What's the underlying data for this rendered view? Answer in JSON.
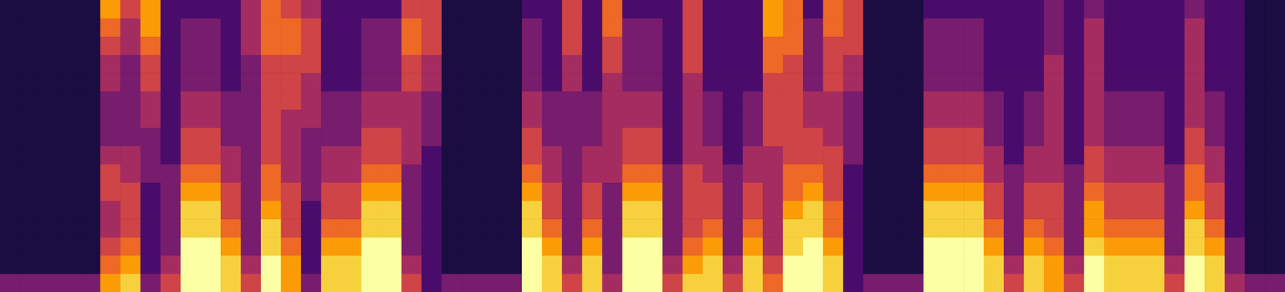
{
  "chart_data": {
    "type": "heatmap",
    "tick_labels": false,
    "color": "inferno",
    "zlim": [
      0,
      9
    ],
    "cells": [
      [
        3,
        1,
        1,
        1,
        1,
        1,
        1,
        1,
        1,
        1,
        1,
        1,
        1,
        1,
        1,
        1
      ],
      [
        3,
        1,
        1,
        1,
        1,
        1,
        1,
        1,
        1,
        1,
        1,
        1,
        1,
        1,
        1,
        1
      ],
      [
        3,
        1,
        1,
        1,
        1,
        1,
        1,
        1,
        1,
        1,
        1,
        1,
        1,
        1,
        1,
        1
      ],
      [
        3,
        1,
        1,
        1,
        1,
        1,
        1,
        1,
        1,
        1,
        1,
        1,
        1,
        1,
        1,
        1
      ],
      [
        3,
        1,
        1,
        1,
        1,
        1,
        1,
        1,
        1,
        1,
        1,
        1,
        1,
        1,
        1,
        1
      ],
      [
        7,
        6,
        5,
        4,
        4,
        5,
        5,
        4,
        3,
        3,
        3,
        4,
        4,
        5,
        6,
        7
      ],
      [
        8,
        7,
        6,
        5,
        5,
        5,
        4,
        4,
        3,
        3,
        3,
        3,
        3,
        4,
        4,
        5
      ],
      [
        3,
        2,
        2,
        2,
        2,
        2,
        3,
        3,
        3,
        4,
        4,
        5,
        5,
        6,
        7,
        7
      ],
      [
        5,
        4,
        3,
        3,
        3,
        3,
        3,
        2,
        2,
        2,
        2,
        2,
        2,
        2,
        2,
        2
      ],
      [
        9,
        9,
        9,
        8,
        8,
        7,
        6,
        5,
        5,
        4,
        4,
        3,
        3,
        3,
        3,
        2
      ],
      [
        9,
        9,
        9,
        8,
        8,
        7,
        6,
        5,
        5,
        4,
        4,
        3,
        3,
        3,
        3,
        2
      ],
      [
        8,
        8,
        7,
        6,
        5,
        5,
        4,
        4,
        3,
        3,
        3,
        2,
        2,
        2,
        2,
        2
      ],
      [
        5,
        4,
        3,
        3,
        3,
        3,
        3,
        3,
        3,
        3,
        3,
        3,
        3,
        4,
        4,
        4
      ],
      [
        9,
        9,
        8,
        8,
        7,
        6,
        6,
        5,
        5,
        5,
        5,
        5,
        5,
        6,
        6,
        6
      ],
      [
        7,
        7,
        6,
        5,
        5,
        5,
        4,
        4,
        4,
        4,
        5,
        5,
        5,
        6,
        6,
        5
      ],
      [
        3,
        2,
        2,
        2,
        2,
        3,
        3,
        3,
        3,
        4,
        4,
        4,
        5,
        5,
        5,
        4
      ],
      [
        8,
        8,
        7,
        6,
        5,
        5,
        4,
        4,
        3,
        3,
        3,
        2,
        2,
        2,
        2,
        2
      ],
      [
        8,
        8,
        7,
        6,
        5,
        5,
        4,
        4,
        3,
        3,
        3,
        2,
        2,
        2,
        2,
        2
      ],
      [
        9,
        9,
        9,
        8,
        8,
        7,
        6,
        5,
        5,
        4,
        4,
        3,
        3,
        3,
        3,
        2
      ],
      [
        9,
        9,
        9,
        8,
        8,
        7,
        6,
        5,
        5,
        4,
        4,
        3,
        3,
        3,
        3,
        2
      ],
      [
        5,
        4,
        3,
        3,
        3,
        3,
        3,
        4,
        4,
        4,
        4,
        5,
        5,
        6,
        6,
        5
      ],
      [
        2,
        2,
        2,
        2,
        2,
        2,
        2,
        2,
        3,
        3,
        3,
        4,
        4,
        5,
        5,
        5
      ],
      [
        3,
        1,
        1,
        1,
        1,
        1,
        1,
        1,
        1,
        1,
        1,
        1,
        1,
        1,
        1,
        1
      ],
      [
        3,
        1,
        1,
        1,
        1,
        1,
        1,
        1,
        1,
        1,
        1,
        1,
        1,
        1,
        1,
        1
      ],
      [
        3,
        1,
        1,
        1,
        1,
        1,
        1,
        1,
        1,
        1,
        1,
        1,
        1,
        1,
        1,
        1
      ],
      [
        3,
        1,
        1,
        1,
        1,
        1,
        1,
        1,
        1,
        1,
        1,
        1,
        1,
        1,
        1,
        1
      ],
      [
        9,
        9,
        9,
        8,
        8,
        7,
        6,
        5,
        5,
        4,
        4,
        3,
        3,
        3,
        3,
        2
      ],
      [
        8,
        8,
        7,
        6,
        5,
        5,
        4,
        4,
        3,
        3,
        3,
        2,
        2,
        2,
        2,
        2
      ],
      [
        5,
        4,
        3,
        3,
        3,
        3,
        3,
        3,
        3,
        3,
        3,
        4,
        4,
        5,
        5,
        5
      ],
      [
        8,
        8,
        7,
        6,
        5,
        5,
        4,
        4,
        3,
        3,
        3,
        2,
        2,
        2,
        2,
        2
      ],
      [
        4,
        3,
        3,
        3,
        3,
        3,
        4,
        4,
        4,
        4,
        4,
        4,
        5,
        5,
        6,
        6
      ],
      [
        9,
        9,
        9,
        8,
        8,
        7,
        6,
        5,
        5,
        4,
        4,
        3,
        3,
        3,
        3,
        2
      ],
      [
        9,
        9,
        9,
        8,
        8,
        7,
        6,
        5,
        5,
        4,
        4,
        3,
        3,
        3,
        3,
        2
      ],
      [
        5,
        4,
        3,
        3,
        3,
        3,
        3,
        2,
        2,
        2,
        2,
        2,
        2,
        2,
        2,
        2
      ],
      [
        8,
        7,
        6,
        5,
        5,
        5,
        5,
        4,
        4,
        4,
        4,
        4,
        5,
        5,
        5,
        5
      ],
      [
        8,
        8,
        7,
        6,
        5,
        5,
        4,
        4,
        3,
        3,
        3,
        2,
        2,
        2,
        2,
        2
      ],
      [
        5,
        4,
        3,
        3,
        3,
        3,
        3,
        2,
        2,
        2,
        2,
        2,
        2,
        2,
        2,
        2
      ],
      [
        8,
        8,
        7,
        6,
        5,
        5,
        4,
        4,
        3,
        3,
        3,
        2,
        2,
        2,
        2,
        2
      ],
      [
        6,
        5,
        4,
        4,
        4,
        4,
        4,
        4,
        5,
        5,
        5,
        5,
        6,
        6,
        7,
        7
      ],
      [
        9,
        9,
        8,
        8,
        7,
        6,
        6,
        5,
        5,
        5,
        5,
        5,
        5,
        6,
        6,
        6
      ],
      [
        9,
        9,
        9,
        8,
        8,
        7,
        6,
        5,
        5,
        4,
        4,
        3,
        3,
        3,
        3,
        2
      ],
      [
        8,
        8,
        7,
        6,
        6,
        5,
        5,
        5,
        4,
        4,
        4,
        5,
        5,
        5,
        6,
        6
      ],
      [
        2,
        2,
        2,
        2,
        2,
        2,
        2,
        3,
        3,
        3,
        3,
        4,
        4,
        5,
        5,
        5
      ],
      [
        3,
        1,
        1,
        1,
        1,
        1,
        1,
        1,
        1,
        1,
        1,
        1,
        1,
        1,
        1,
        1
      ],
      [
        3,
        1,
        1,
        1,
        1,
        1,
        1,
        1,
        1,
        1,
        1,
        1,
        1,
        1,
        1,
        1
      ],
      [
        3,
        1,
        1,
        1,
        1,
        1,
        1,
        1,
        1,
        1,
        1,
        1,
        1,
        1,
        1,
        1
      ],
      [
        9,
        9,
        9,
        8,
        8,
        7,
        6,
        5,
        5,
        4,
        4,
        3,
        3,
        3,
        3,
        2
      ],
      [
        9,
        9,
        9,
        8,
        8,
        7,
        6,
        5,
        5,
        4,
        4,
        3,
        3,
        3,
        3,
        2
      ],
      [
        9,
        9,
        9,
        8,
        8,
        7,
        6,
        5,
        5,
        4,
        4,
        3,
        3,
        3,
        3,
        2
      ],
      [
        8,
        8,
        7,
        6,
        5,
        5,
        4,
        4,
        3,
        3,
        3,
        2,
        2,
        2,
        2,
        2
      ],
      [
        5,
        4,
        3,
        3,
        3,
        3,
        3,
        2,
        2,
        2,
        2,
        2,
        2,
        2,
        2,
        2
      ],
      [
        8,
        8,
        7,
        6,
        5,
        5,
        4,
        4,
        3,
        3,
        3,
        2,
        2,
        2,
        2,
        2
      ],
      [
        7,
        7,
        6,
        5,
        5,
        5,
        4,
        4,
        4,
        4,
        4,
        4,
        4,
        3,
        3,
        3
      ],
      [
        5,
        4,
        3,
        3,
        3,
        3,
        3,
        2,
        2,
        2,
        2,
        2,
        2,
        2,
        2,
        2
      ],
      [
        9,
        9,
        8,
        7,
        7,
        6,
        5,
        5,
        4,
        4,
        4,
        4,
        4,
        4,
        4,
        3
      ],
      [
        8,
        8,
        7,
        6,
        5,
        5,
        4,
        4,
        3,
        3,
        3,
        2,
        2,
        2,
        2,
        2
      ],
      [
        8,
        8,
        7,
        6,
        5,
        5,
        4,
        4,
        3,
        3,
        3,
        2,
        2,
        2,
        2,
        2
      ],
      [
        8,
        8,
        7,
        6,
        5,
        5,
        4,
        4,
        3,
        3,
        3,
        2,
        2,
        2,
        2,
        2
      ],
      [
        5,
        4,
        3,
        3,
        3,
        3,
        3,
        2,
        2,
        2,
        2,
        2,
        2,
        2,
        2,
        2
      ],
      [
        9,
        9,
        8,
        8,
        7,
        6,
        6,
        5,
        5,
        4,
        4,
        4,
        4,
        4,
        4,
        3
      ],
      [
        8,
        8,
        7,
        6,
        5,
        5,
        4,
        4,
        3,
        3,
        3,
        2,
        2,
        2,
        2,
        2
      ],
      [
        4,
        3,
        3,
        2,
        2,
        2,
        2,
        2,
        2,
        2,
        2,
        2,
        2,
        2,
        2,
        2
      ],
      [
        3,
        1,
        1,
        1,
        1,
        1,
        1,
        1,
        1,
        1,
        1,
        1,
        1,
        1,
        1,
        1
      ],
      [
        3,
        1,
        1,
        1,
        1,
        1,
        1,
        1,
        1,
        1,
        1,
        1,
        1,
        1,
        1,
        1
      ]
    ]
  }
}
